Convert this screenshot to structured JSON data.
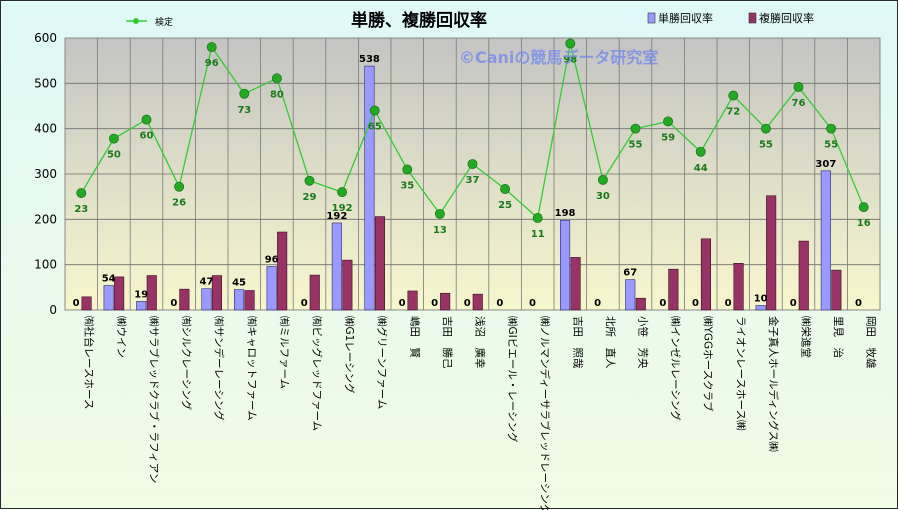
{
  "chart_data": {
    "type": "bar",
    "title": "単勝、複勝回収率",
    "watermark": "©Caniの競馬データ研究室",
    "ylim": [
      0,
      600
    ],
    "yticks": [
      "0",
      "100",
      "200",
      "300",
      "400",
      "500",
      "600"
    ],
    "grid": true,
    "legend_position": "top",
    "categories": [
      "㈲社台レースホース",
      "㈱ウイン",
      "㈱サラブレッドクラブ・ラフィアン",
      "㈲シルクレーシング",
      "㈲サンデーレーシング",
      "㈲キャロットファーム",
      "㈲ミルファーム",
      "㈲ビッグレッドファーム",
      "㈱G1レーシング",
      "㈱グリーンファーム",
      "嶋田　賢",
      "吉田　勝己",
      "浅沼　廣幸",
      "㈱GIビエール・レーシング",
      "㈱ノルマンディーサラブレッドレーシング",
      "吉田　照哉",
      "北所　直人",
      "小笹　芳央",
      "㈱インゼルレーシング",
      "㈱YGGホースクラブ",
      "ライオンレースホース㈱",
      "金子真人ホールディングス㈱",
      "㈱栄進堂",
      "里見　治",
      "岡田　牧雄"
    ],
    "series": [
      {
        "name": "単勝回収率",
        "kind": "bar",
        "color": "#9999ff",
        "values": [
          0,
          54,
          19,
          0,
          47,
          45,
          96,
          0,
          192,
          538,
          0,
          0,
          0,
          0,
          0,
          198,
          0,
          67,
          0,
          0,
          0,
          10,
          0,
          307,
          0
        ]
      },
      {
        "name": "複勝回収率",
        "kind": "bar",
        "color": "#993366",
        "values": [
          29,
          73,
          76,
          46,
          76,
          43,
          172,
          77,
          110,
          206,
          42,
          37,
          35,
          0,
          0,
          116,
          0,
          26,
          90,
          157,
          103,
          252,
          152,
          88,
          0
        ]
      },
      {
        "name": "検定",
        "kind": "line",
        "color": "#33cc33",
        "values": [
          258,
          378,
          420,
          272,
          580,
          477,
          511,
          285,
          260,
          440,
          310,
          212,
          322,
          267,
          203,
          588,
          287,
          400,
          416,
          349,
          473,
          400,
          492,
          400,
          227
        ],
        "labels": [
          "23",
          "50",
          "60",
          "26",
          "96",
          "73",
          "80",
          "29",
          "192",
          "65",
          "35",
          "13",
          "37",
          "25",
          "11",
          "98",
          "30",
          "55",
          "59",
          "44",
          "72",
          "55",
          "76",
          "55",
          "16"
        ]
      }
    ]
  }
}
